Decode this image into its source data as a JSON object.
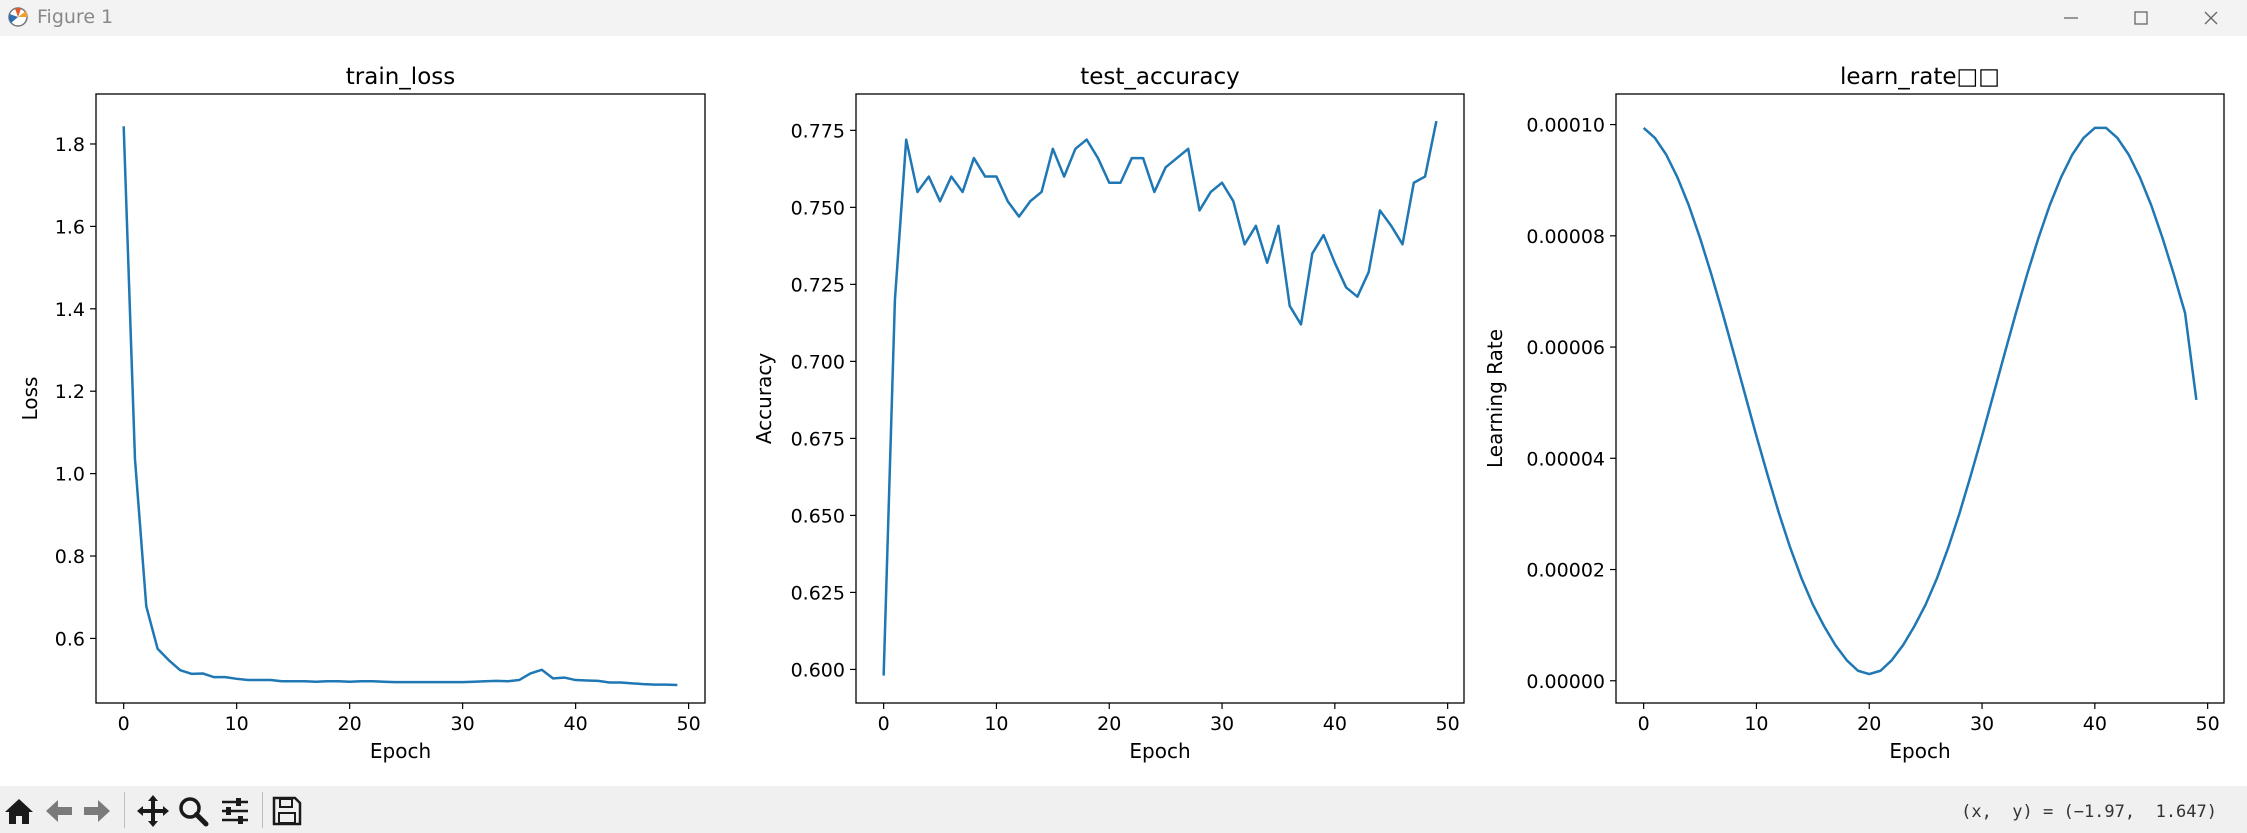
{
  "window": {
    "title": "Figure 1"
  },
  "toolbar": {
    "buttons": [
      "home-icon",
      "back-icon",
      "forward-icon",
      "pan-icon",
      "zoom-icon",
      "configure-subplots-icon",
      "save-icon"
    ],
    "coords_text": "(x,  y) = (−1.97,  1.647)"
  },
  "colors": {
    "line": "#1f77b4",
    "toolbar_bg": "#f0f0f0",
    "titlebar_bg": "#f3f3f3"
  },
  "chart_data": [
    {
      "type": "line",
      "title": "train_loss",
      "xlabel": "Epoch",
      "ylabel": "Loss",
      "xlim": [
        -2.45,
        51.45
      ],
      "ylim": [
        0.4433,
        1.9213
      ],
      "xticks": [
        0,
        10,
        20,
        30,
        40,
        50
      ],
      "yticks": [
        0.6,
        0.8,
        1.0,
        1.2,
        1.4,
        1.6,
        1.8
      ],
      "ytick_labels": [
        "0.6",
        "0.8",
        "1.0",
        "1.2",
        "1.4",
        "1.6",
        "1.8"
      ],
      "x": [
        0,
        1,
        2,
        3,
        4,
        5,
        6,
        7,
        8,
        9,
        10,
        11,
        12,
        13,
        14,
        15,
        16,
        17,
        18,
        19,
        20,
        21,
        22,
        23,
        24,
        25,
        26,
        27,
        28,
        29,
        30,
        31,
        32,
        33,
        34,
        35,
        36,
        37,
        38,
        39,
        40,
        41,
        42,
        43,
        44,
        45,
        46,
        47,
        48,
        49
      ],
      "values": [
        1.843,
        1.035,
        0.678,
        0.575,
        0.547,
        0.523,
        0.514,
        0.515,
        0.506,
        0.506,
        0.502,
        0.499,
        0.499,
        0.499,
        0.496,
        0.496,
        0.496,
        0.495,
        0.496,
        0.496,
        0.495,
        0.496,
        0.496,
        0.495,
        0.494,
        0.494,
        0.494,
        0.494,
        0.494,
        0.494,
        0.494,
        0.495,
        0.496,
        0.497,
        0.496,
        0.499,
        0.515,
        0.524,
        0.503,
        0.505,
        0.499,
        0.498,
        0.497,
        0.493,
        0.493,
        0.491,
        0.489,
        0.488,
        0.488,
        0.487
      ]
    },
    {
      "type": "line",
      "title": "test_accuracy",
      "xlabel": "Epoch",
      "ylabel": "Accuracy",
      "xlim": [
        -2.45,
        51.45
      ],
      "ylim": [
        0.5891,
        0.7868
      ],
      "xticks": [
        0,
        10,
        20,
        30,
        40,
        50
      ],
      "yticks": [
        0.6,
        0.625,
        0.65,
        0.675,
        0.7,
        0.725,
        0.75,
        0.775
      ],
      "ytick_labels": [
        "0.600",
        "0.625",
        "0.650",
        "0.675",
        "0.700",
        "0.725",
        "0.750",
        "0.775"
      ],
      "x": [
        0,
        1,
        2,
        3,
        4,
        5,
        6,
        7,
        8,
        9,
        10,
        11,
        12,
        13,
        14,
        15,
        16,
        17,
        18,
        19,
        20,
        21,
        22,
        23,
        24,
        25,
        26,
        27,
        28,
        29,
        30,
        31,
        32,
        33,
        34,
        35,
        36,
        37,
        38,
        39,
        40,
        41,
        42,
        43,
        44,
        45,
        46,
        47,
        48,
        49
      ],
      "values": [
        0.598,
        0.72,
        0.772,
        0.755,
        0.76,
        0.752,
        0.76,
        0.755,
        0.766,
        0.76,
        0.76,
        0.752,
        0.747,
        0.752,
        0.755,
        0.769,
        0.76,
        0.769,
        0.772,
        0.766,
        0.758,
        0.758,
        0.766,
        0.766,
        0.755,
        0.763,
        0.766,
        0.769,
        0.749,
        0.755,
        0.758,
        0.752,
        0.738,
        0.744,
        0.732,
        0.744,
        0.718,
        0.712,
        0.735,
        0.741,
        0.732,
        0.724,
        0.721,
        0.729,
        0.749,
        0.744,
        0.738,
        0.758,
        0.76,
        0.778
      ]
    },
    {
      "type": "line",
      "title": "learn_rate□□",
      "xlabel": "Epoch",
      "ylabel": "Learning Rate",
      "xlim": [
        -2.45,
        51.45
      ],
      "ylim": [
        -4e-06,
        0.0001055
      ],
      "xticks": [
        0,
        10,
        20,
        30,
        40,
        50
      ],
      "yticks": [
        0,
        2e-05,
        4e-05,
        6e-05,
        8e-05,
        0.0001
      ],
      "ytick_labels": [
        "0.00000",
        "0.00002",
        "0.00004",
        "0.00006",
        "0.00008",
        "0.00010"
      ],
      "x": [
        0,
        1,
        2,
        3,
        4,
        5,
        6,
        7,
        8,
        9,
        10,
        11,
        12,
        13,
        14,
        15,
        16,
        17,
        18,
        19,
        20,
        21,
        22,
        23,
        24,
        25,
        26,
        27,
        28,
        29,
        30,
        31,
        32,
        33,
        34,
        35,
        36,
        37,
        38,
        39,
        40,
        41,
        42,
        43,
        44,
        45,
        46,
        47,
        48,
        49
      ],
      "values": [
        9.94e-05,
        9.76e-05,
        9.46e-05,
        9.05e-05,
        8.55e-05,
        7.96e-05,
        7.31e-05,
        6.61e-05,
        5.88e-05,
        5.14e-05,
        4.4e-05,
        3.69e-05,
        3.01e-05,
        2.39e-05,
        1.84e-05,
        1.37e-05,
        9.8e-06,
        6.4e-06,
        3.7e-06,
        1.8e-06,
        1.2e-06,
        1.8e-06,
        3.7e-06,
        6.4e-06,
        9.8e-06,
        1.37e-05,
        1.84e-05,
        2.39e-05,
        3.01e-05,
        3.69e-05,
        4.4e-05,
        5.14e-05,
        5.88e-05,
        6.61e-05,
        7.31e-05,
        7.96e-05,
        8.55e-05,
        9.05e-05,
        9.46e-05,
        9.76e-05,
        9.94e-05,
        9.94e-05,
        9.76e-05,
        9.46e-05,
        9.05e-05,
        8.55e-05,
        7.96e-05,
        7.31e-05,
        6.61e-05,
        5.05e-05
      ]
    }
  ]
}
